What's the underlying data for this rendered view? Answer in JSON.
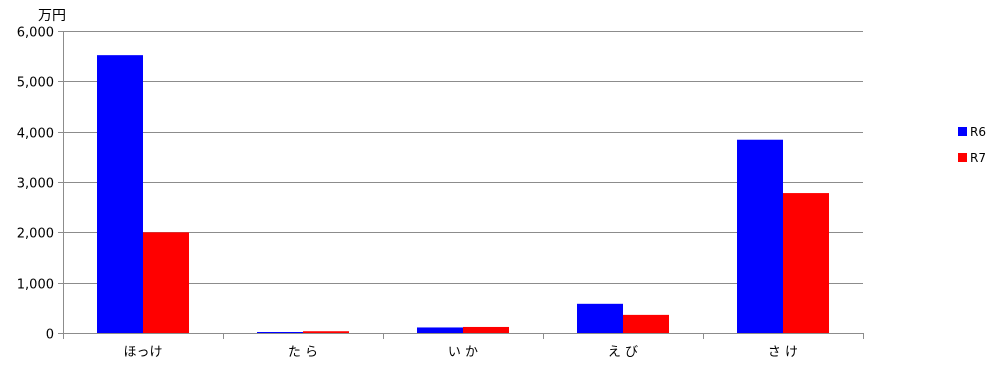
{
  "chart_data": {
    "type": "bar",
    "title": "",
    "ylabel": "万円",
    "xlabel": "",
    "categories": [
      "ほっけ",
      "た ら",
      "い か",
      "え び",
      "さ け"
    ],
    "series": [
      {
        "name": "R6",
        "color": "#0000ff",
        "values": [
          5520,
          15,
          110,
          580,
          3840
        ]
      },
      {
        "name": "R7",
        "color": "#ff0000",
        "values": [
          2000,
          35,
          120,
          360,
          2780
        ]
      }
    ],
    "ylim": [
      0,
      6000
    ],
    "yticks": [
      0,
      1000,
      2000,
      3000,
      4000,
      5000,
      6000
    ],
    "ytick_labels": [
      "0",
      "1,000",
      "2,000",
      "3,000",
      "4,000",
      "5,000",
      "6,000"
    ],
    "grid": true,
    "legend": "right"
  }
}
